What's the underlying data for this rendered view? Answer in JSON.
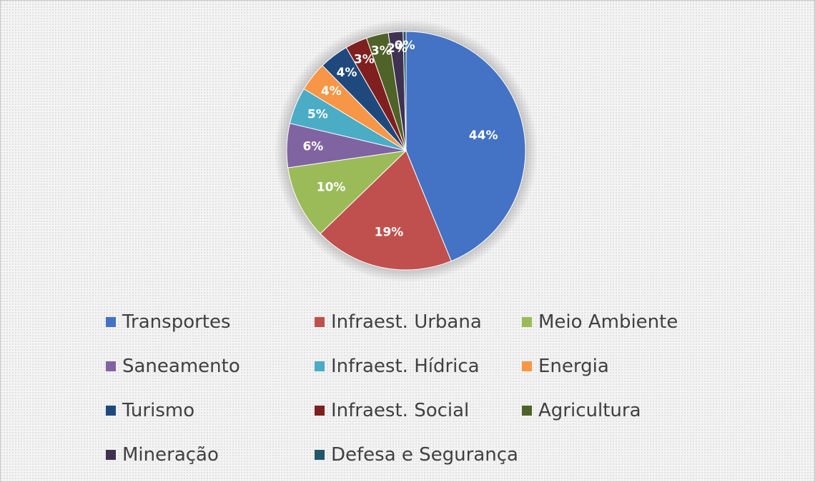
{
  "chart_data": {
    "type": "pie",
    "title": "",
    "categories": [
      "Transportes",
      "Infraest. Urbana",
      "Meio Ambiente",
      "Saneamento",
      "Infraest. Hídrica",
      "Energia",
      "Turismo",
      "Infraest. Social",
      "Agricultura",
      "Mineração",
      "Defesa e Segurança"
    ],
    "values": [
      44,
      19,
      10,
      6,
      5,
      4,
      4,
      3,
      3,
      2,
      0.4
    ],
    "data_labels": [
      "44%",
      "19%",
      "10%",
      "6%",
      "5%",
      "4%",
      "4%",
      "3%",
      "3%",
      "2%",
      "0%"
    ],
    "colors": [
      "#4472c4",
      "#c0504d",
      "#9bbb59",
      "#8064a2",
      "#4bacc6",
      "#f79646",
      "#1f497d",
      "#7f1f1f",
      "#4f6228",
      "#3f3151",
      "#215968"
    ],
    "legend_position": "bottom",
    "legend_rows": [
      [
        "Transportes",
        "Infraest. Urbana",
        "Meio Ambiente"
      ],
      [
        "Saneamento",
        "Infraest. Hídrica",
        "Energia"
      ],
      [
        "Turismo",
        "Infraest. Social",
        "Agricultura"
      ],
      [
        "Mineração",
        "Defesa e Segurança"
      ]
    ]
  }
}
